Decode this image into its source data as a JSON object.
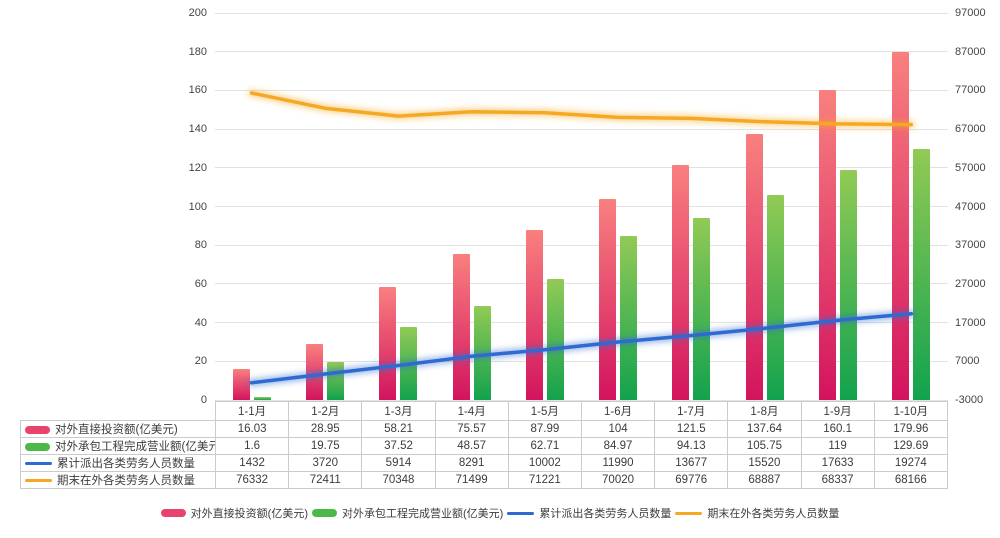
{
  "chart_data": {
    "type": "combo-bar-line",
    "categories": [
      "1-1月",
      "1-2月",
      "1-3月",
      "1-4月",
      "1-5月",
      "1-6月",
      "1-7月",
      "1-8月",
      "1-9月",
      "1-10月"
    ],
    "series": [
      {
        "name": "对外直接投资额(亿美元)",
        "type": "bar",
        "axis": "left",
        "values": [
          16.03,
          28.95,
          58.21,
          75.57,
          87.99,
          104,
          121.5,
          137.64,
          160.1,
          179.96
        ],
        "color_top": "#f9807f",
        "color_bottom": "#d2145e",
        "swatch_color": "#e8436e",
        "key": "direct-investment"
      },
      {
        "name": "对外承包工程完成营业额(亿美元)",
        "type": "bar",
        "axis": "left",
        "values": [
          1.6,
          19.75,
          37.52,
          48.57,
          62.71,
          84.97,
          94.13,
          105.75,
          119,
          129.69
        ],
        "color_top": "#92ca55",
        "color_bottom": "#12a24e",
        "swatch_color": "#4cb848",
        "key": "contract-turnover"
      },
      {
        "name": "累计派出各类劳务人员数量",
        "type": "line",
        "axis": "right",
        "values": [
          1432,
          3720,
          5914,
          8291,
          10002,
          11990,
          13677,
          15520,
          17633,
          19274
        ],
        "color": "#2e6ad0",
        "swatch_color": "#2e6ad0",
        "key": "cumulative-dispatched-workers"
      },
      {
        "name": "期末在外各类劳务人员数量",
        "type": "line",
        "axis": "right",
        "values": [
          76332,
          72411,
          70348,
          71499,
          71221,
          70020,
          69776,
          68887,
          68337,
          68166
        ],
        "color": "#f7a823",
        "swatch_color": "#f7a823",
        "key": "workers-abroad-end-of-period"
      }
    ],
    "left_axis": {
      "min": 0,
      "max": 200,
      "ticks": [
        200,
        180,
        160,
        140,
        120,
        100,
        80,
        60,
        40,
        20,
        0
      ]
    },
    "right_axis": {
      "min": -3000,
      "max": 97000,
      "ticks": [
        97000,
        87000,
        77000,
        67000,
        57000,
        47000,
        37000,
        27000,
        17000,
        7000,
        -3000
      ]
    },
    "grid": true,
    "legend_position": "bottom",
    "title": ""
  }
}
